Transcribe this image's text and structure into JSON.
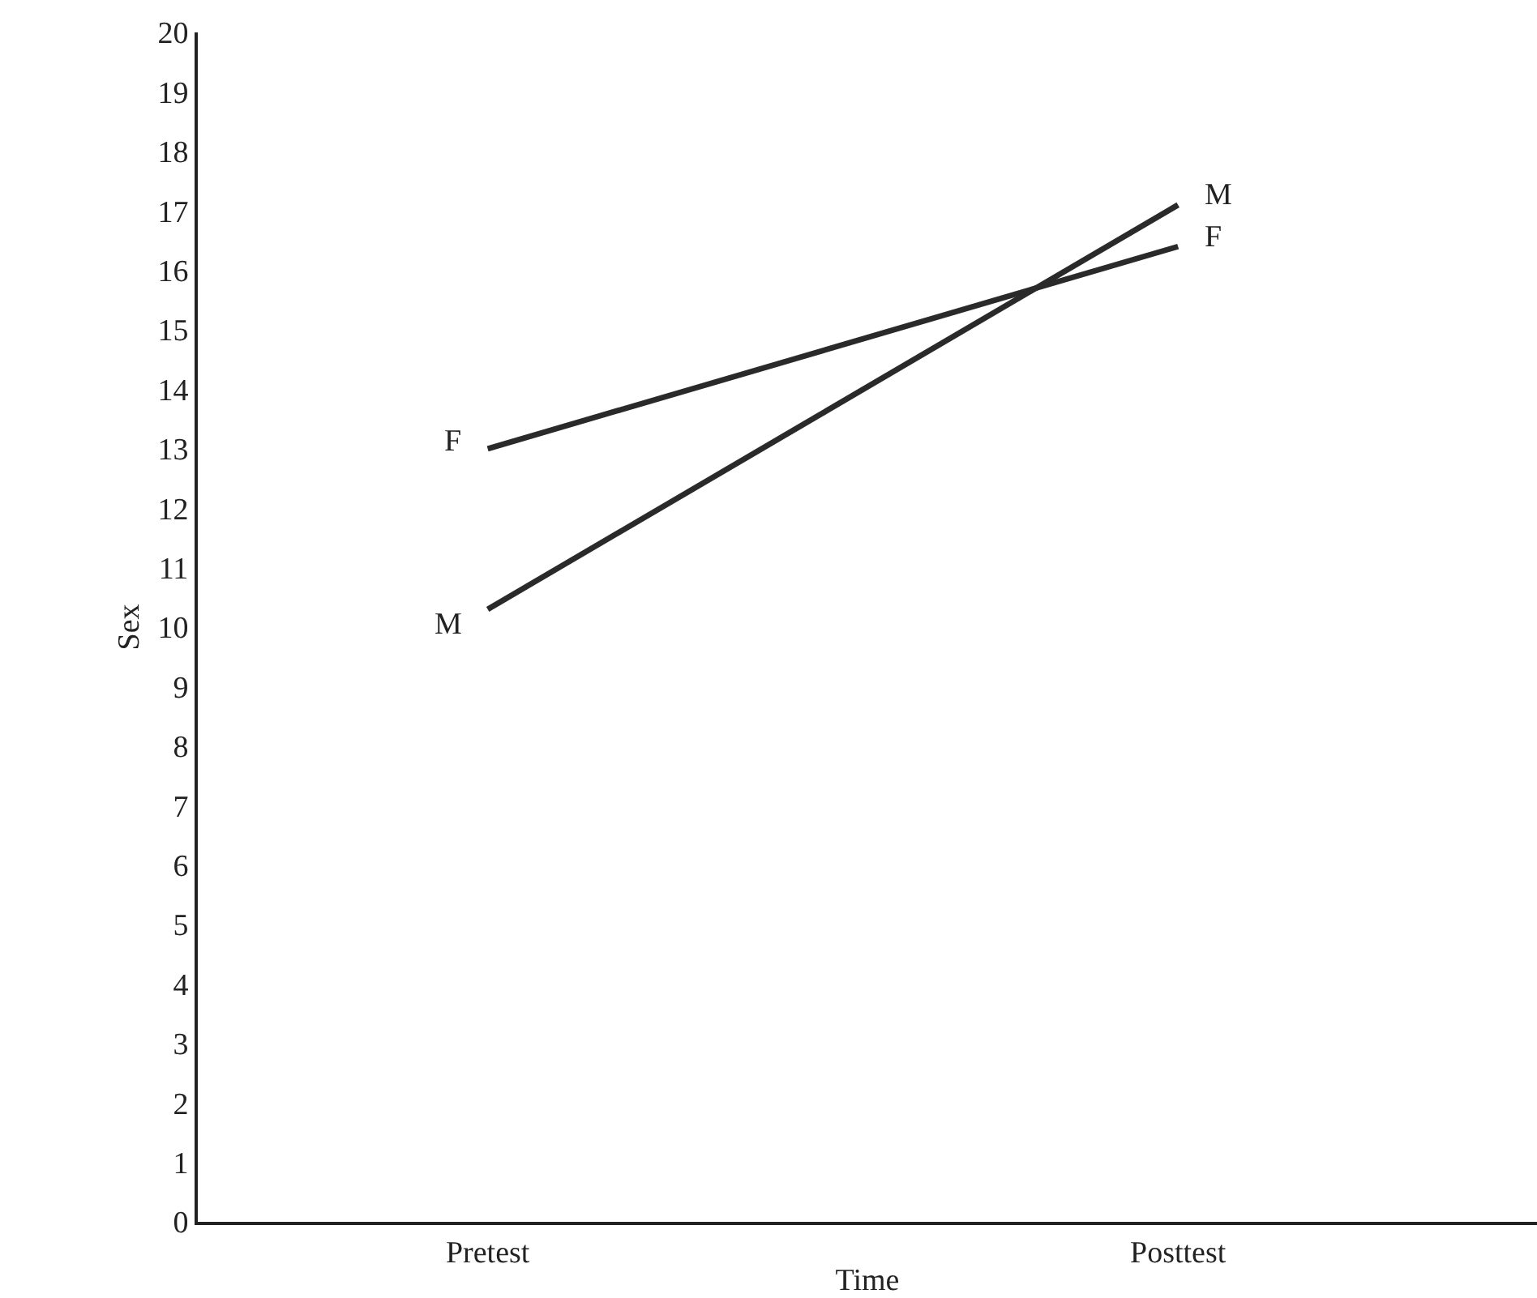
{
  "chart_data": {
    "type": "line",
    "xlabel": "Time",
    "ylabel": "Sex",
    "categories": [
      "Pretest",
      "Posttest"
    ],
    "series": [
      {
        "name": "F",
        "color": "#2a2a2a",
        "values": [
          13,
          16.4
        ]
      },
      {
        "name": "M",
        "color": "#2a2a2a",
        "values": [
          10.3,
          17.1
        ]
      }
    ],
    "ylim": [
      0,
      20
    ],
    "yticks": [
      0,
      1,
      2,
      3,
      4,
      5,
      6,
      7,
      8,
      9,
      10,
      11,
      12,
      13,
      14,
      15,
      16,
      17,
      18,
      19,
      20
    ],
    "grid": false,
    "legend": false,
    "marker": "none",
    "line_style": "solid"
  }
}
